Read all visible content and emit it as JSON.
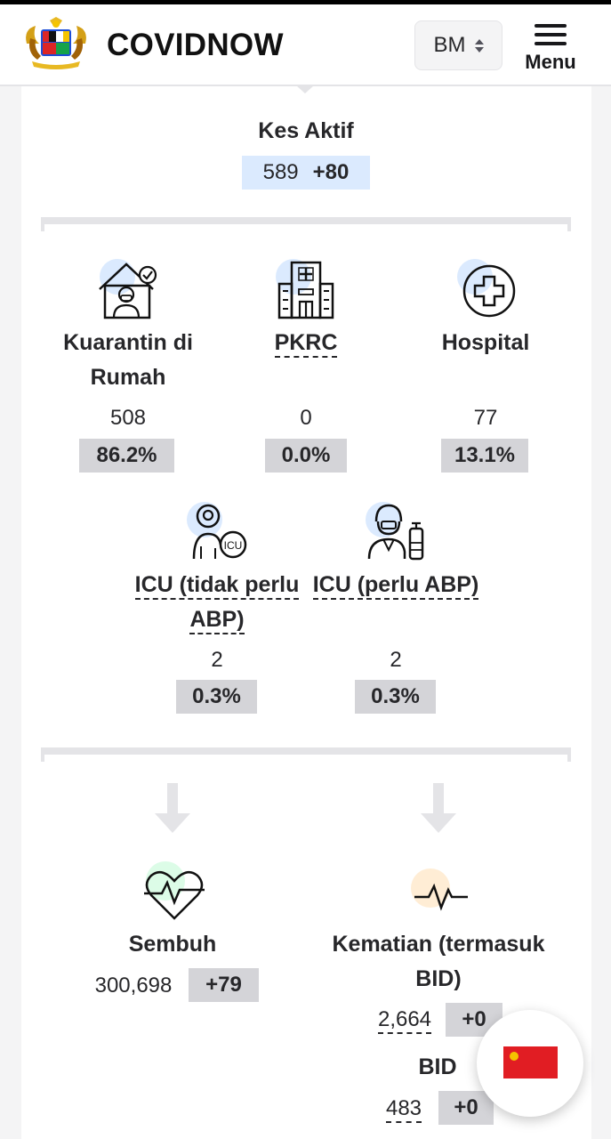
{
  "header": {
    "brand": "COVIDNOW",
    "language": "BM",
    "menu_label": "Menu"
  },
  "active": {
    "title": "Kes Aktif",
    "value": "589",
    "change": "+80"
  },
  "breakdown": [
    {
      "label_line1": "Kuarantin di",
      "label_line2": "Rumah",
      "value": "508",
      "pct": "86.2%"
    },
    {
      "label_line1": "PKRC",
      "value": "0",
      "pct": "0.0%"
    },
    {
      "label_line1": "Hospital",
      "value": "77",
      "pct": "13.1%"
    },
    {
      "label_line1": "ICU (tidak perlu",
      "label_line2": "ABP)",
      "value": "2",
      "pct": "0.3%"
    },
    {
      "label_line1": "ICU (perlu ABP)",
      "value": "2",
      "pct": "0.3%"
    }
  ],
  "recovered": {
    "title": "Sembuh",
    "value": "300,698",
    "change": "+79"
  },
  "deaths": {
    "title_line1": "Kematian (termasuk",
    "title_line2": "BID)",
    "value": "2,664",
    "change": "+0",
    "bid_label": "BID",
    "bid_value": "483",
    "bid_change": "+0"
  },
  "colors": {
    "icon_bg_blue": "#dbeafe",
    "icon_bg_green": "#dcfce7",
    "icon_bg_orange": "#ffedd5",
    "badge_gray": "#d4d4d8",
    "badge_blue": "#dbeafe",
    "flag_red": "#e11d23"
  }
}
